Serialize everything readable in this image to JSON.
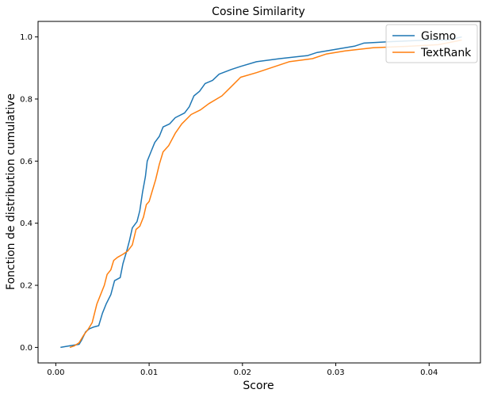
{
  "chart_data": {
    "type": "line",
    "title": "Cosine Similarity",
    "xlabel": "Score",
    "ylabel": "Fonction de distribution cumulative",
    "xlim": [
      -0.0019,
      0.0455
    ],
    "ylim": [
      -0.05,
      1.05
    ],
    "xticks": [
      0.0,
      0.01,
      0.02,
      0.03,
      0.04
    ],
    "xtick_labels": [
      "0.00",
      "0.01",
      "0.02",
      "0.03",
      "0.04"
    ],
    "yticks": [
      0.0,
      0.2,
      0.4,
      0.6,
      0.8,
      1.0
    ],
    "ytick_labels": [
      "0.0",
      "0.2",
      "0.4",
      "0.6",
      "0.8",
      "1.0"
    ],
    "grid": false,
    "legend_position": "top-right",
    "series": [
      {
        "name": "Gismo",
        "color": "#1f77b4",
        "points": [
          [
            0.0005,
            0.0
          ],
          [
            0.0015,
            0.005
          ],
          [
            0.0025,
            0.01
          ],
          [
            0.0028,
            0.025
          ],
          [
            0.0032,
            0.05
          ],
          [
            0.0036,
            0.06
          ],
          [
            0.004,
            0.065
          ],
          [
            0.0046,
            0.07
          ],
          [
            0.005,
            0.11
          ],
          [
            0.0054,
            0.14
          ],
          [
            0.0059,
            0.17
          ],
          [
            0.0063,
            0.215
          ],
          [
            0.0069,
            0.225
          ],
          [
            0.0072,
            0.27
          ],
          [
            0.0076,
            0.31
          ],
          [
            0.0079,
            0.345
          ],
          [
            0.0082,
            0.385
          ],
          [
            0.0087,
            0.405
          ],
          [
            0.009,
            0.44
          ],
          [
            0.0093,
            0.5
          ],
          [
            0.0096,
            0.55
          ],
          [
            0.0098,
            0.6
          ],
          [
            0.0102,
            0.63
          ],
          [
            0.0106,
            0.66
          ],
          [
            0.0111,
            0.68
          ],
          [
            0.0115,
            0.71
          ],
          [
            0.0122,
            0.72
          ],
          [
            0.0128,
            0.74
          ],
          [
            0.0138,
            0.755
          ],
          [
            0.0143,
            0.775
          ],
          [
            0.0148,
            0.81
          ],
          [
            0.0154,
            0.825
          ],
          [
            0.016,
            0.85
          ],
          [
            0.0168,
            0.86
          ],
          [
            0.0175,
            0.88
          ],
          [
            0.0188,
            0.895
          ],
          [
            0.0198,
            0.905
          ],
          [
            0.0215,
            0.92
          ],
          [
            0.024,
            0.93
          ],
          [
            0.027,
            0.94
          ],
          [
            0.028,
            0.95
          ],
          [
            0.03,
            0.96
          ],
          [
            0.032,
            0.97
          ],
          [
            0.033,
            0.98
          ],
          [
            0.036,
            0.985
          ],
          [
            0.04,
            0.99
          ],
          [
            0.042,
            0.99
          ],
          [
            0.0435,
            1.0
          ]
        ]
      },
      {
        "name": "TextRank",
        "color": "#ff7f0e",
        "points": [
          [
            0.0015,
            0.0
          ],
          [
            0.002,
            0.005
          ],
          [
            0.0025,
            0.015
          ],
          [
            0.003,
            0.04
          ],
          [
            0.0035,
            0.06
          ],
          [
            0.0039,
            0.08
          ],
          [
            0.0044,
            0.14
          ],
          [
            0.0048,
            0.17
          ],
          [
            0.0052,
            0.2
          ],
          [
            0.0055,
            0.235
          ],
          [
            0.0059,
            0.25
          ],
          [
            0.0062,
            0.28
          ],
          [
            0.0066,
            0.29
          ],
          [
            0.0072,
            0.3
          ],
          [
            0.0077,
            0.31
          ],
          [
            0.0082,
            0.33
          ],
          [
            0.0086,
            0.38
          ],
          [
            0.009,
            0.39
          ],
          [
            0.0094,
            0.42
          ],
          [
            0.0097,
            0.46
          ],
          [
            0.01,
            0.47
          ],
          [
            0.0103,
            0.5
          ],
          [
            0.0107,
            0.54
          ],
          [
            0.0111,
            0.59
          ],
          [
            0.0115,
            0.63
          ],
          [
            0.0121,
            0.65
          ],
          [
            0.0128,
            0.69
          ],
          [
            0.0135,
            0.72
          ],
          [
            0.0145,
            0.75
          ],
          [
            0.0155,
            0.765
          ],
          [
            0.0164,
            0.785
          ],
          [
            0.0178,
            0.81
          ],
          [
            0.0188,
            0.84
          ],
          [
            0.0198,
            0.87
          ],
          [
            0.0215,
            0.885
          ],
          [
            0.023,
            0.9
          ],
          [
            0.025,
            0.92
          ],
          [
            0.0275,
            0.93
          ],
          [
            0.029,
            0.945
          ],
          [
            0.031,
            0.955
          ],
          [
            0.034,
            0.965
          ],
          [
            0.038,
            0.97
          ],
          [
            0.041,
            0.975
          ],
          [
            0.0435,
            0.99
          ]
        ]
      }
    ]
  }
}
